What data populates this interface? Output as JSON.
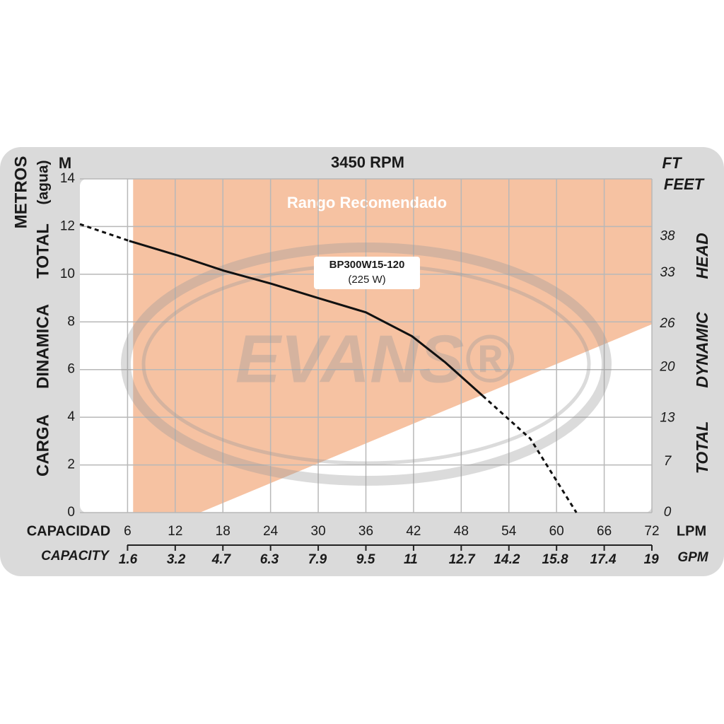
{
  "chart_data": {
    "type": "line",
    "title": "3450 RPM",
    "y_unit": "M",
    "y_label": [
      "METROS",
      "(agua)"
    ],
    "y_title": [
      "CARGA",
      "DINAMICA",
      "TOTAL"
    ],
    "y2_unit": [
      "FT",
      "FEET"
    ],
    "y2_title": [
      "TOTAL",
      "DYNAMIC",
      "HEAD"
    ],
    "x_title": "CAPACIDAD",
    "x_unit": "LPM",
    "x2_title": "CAPACITY",
    "x2_unit": "GPM",
    "xlim": [
      0,
      72
    ],
    "xticks": [
      6,
      12,
      18,
      24,
      30,
      36,
      42,
      48,
      54,
      60,
      66,
      72
    ],
    "x2lim": [
      0,
      19.02
    ],
    "x2ticks": [
      1.6,
      3.2,
      4.7,
      6.3,
      7.9,
      9.5,
      11,
      12.7,
      14.2,
      15.8,
      17.4,
      19
    ],
    "ylim": [
      0,
      14
    ],
    "yticks": [
      0,
      2,
      4,
      6,
      8,
      10,
      12,
      14
    ],
    "y2lim": [
      0,
      45.93
    ],
    "y2ticks": [
      0,
      7,
      13,
      20,
      26,
      33,
      38
    ],
    "grid": true,
    "series": [
      {
        "color": "#111111",
        "style": "dashed",
        "x": [
          0,
          6.2
        ],
        "values": [
          12.1,
          11.4
        ]
      },
      {
        "color": "#111111",
        "style": "solid",
        "x": [
          6.2,
          12.2,
          18.1,
          24.1,
          30,
          36,
          41.8,
          46,
          50.7
        ],
        "values": [
          11.4,
          10.8,
          10.15,
          9.6,
          9.0,
          8.4,
          7.4,
          6.3,
          4.9
        ]
      },
      {
        "color": "#111111",
        "style": "dashed",
        "x": [
          50.7,
          56.7,
          62.5
        ],
        "values": [
          4.9,
          3.1,
          0
        ]
      }
    ],
    "curve_label": [
      "BP300W15-120",
      "(225 W)"
    ],
    "recommended_range": {
      "label": "Rango Recomendado",
      "color": "#f6c2a2",
      "x": [
        6.7,
        6.7,
        15.1,
        72,
        72
      ],
      "y": [
        14,
        0,
        0,
        7.9,
        14
      ]
    },
    "watermark": "EVANS®"
  }
}
